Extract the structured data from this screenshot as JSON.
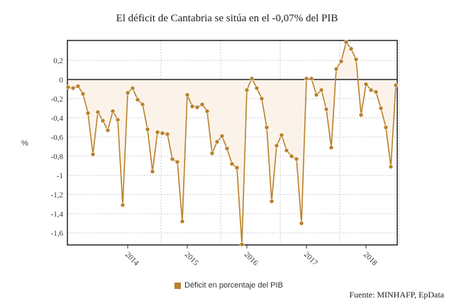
{
  "chart_data": {
    "type": "line",
    "title": "El déficit de Cantabria se sitúa en el -0,07% del PIB",
    "ylabel": "%",
    "xlabel": "",
    "ylim": [
      -1.72,
      0.4
    ],
    "yticks": [
      "0,2",
      "0",
      "-0,2",
      "-0,4",
      "-0,6",
      "-0,8",
      "-1",
      "-1,2",
      "-1,4",
      "-1,6"
    ],
    "ytick_values": [
      0.2,
      0,
      -0.2,
      -0.4,
      -0.6,
      -0.8,
      -1,
      -1.2,
      -1.4,
      -1.6
    ],
    "xticks": [
      "2014",
      "2015",
      "2016",
      "2017",
      "2018"
    ],
    "grid": true,
    "legend_placement": "bottom",
    "color": "#b8812b",
    "fill": "#fbf3ea",
    "series": [
      {
        "name": "Déficit en porcentaje del PIB",
        "start": "2013-01",
        "frequency": "monthly",
        "values": [
          -0.08,
          -0.09,
          -0.07,
          -0.15,
          -0.35,
          -0.78,
          -0.34,
          -0.43,
          -0.53,
          -0.33,
          -0.42,
          -1.31,
          -0.14,
          -0.09,
          -0.21,
          -0.26,
          -0.52,
          -0.96,
          -0.55,
          -0.56,
          -0.57,
          -0.83,
          -0.86,
          -1.48,
          -0.16,
          -0.28,
          -0.29,
          -0.26,
          -0.33,
          -0.77,
          -0.65,
          -0.59,
          -0.72,
          -0.88,
          -0.92,
          -1.72,
          -0.11,
          0.01,
          -0.09,
          -0.2,
          -0.5,
          -1.27,
          -0.69,
          -0.58,
          -0.74,
          -0.8,
          -0.83,
          -1.5,
          0.01,
          0.01,
          -0.16,
          -0.11,
          -0.31,
          -0.71,
          0.11,
          0.19,
          0.39,
          0.32,
          0.21,
          -0.37,
          -0.05,
          -0.11,
          -0.13,
          -0.3,
          -0.5,
          -0.91,
          -0.06
        ]
      }
    ]
  },
  "source": "Fuente: MINHAFP, EpData"
}
